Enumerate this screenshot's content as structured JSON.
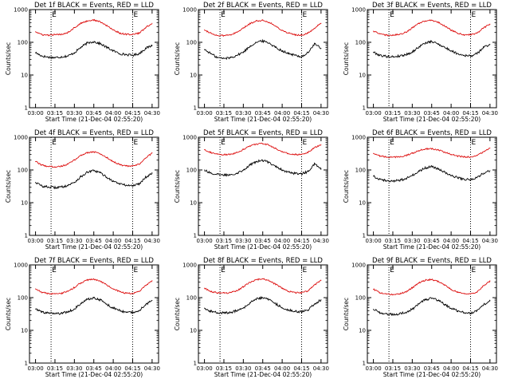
{
  "figure": {
    "colors": {
      "events": "#000000",
      "lld": "#dd1111",
      "marker": "#000000",
      "background": "#ffffff"
    }
  },
  "chart_data": [
    {
      "type": "line",
      "title": "Det 1f BLACK = Events, RED = LLD",
      "xlabel": "Start Time (21-Dec-04 02:55:20)",
      "ylabel": "Counts/sec",
      "x_ticks": [
        "03:00",
        "03:15",
        "03:30",
        "03:45",
        "04:00",
        "04:15",
        "04:30"
      ],
      "y_ticks": [
        "1",
        "10",
        "100",
        "1000"
      ],
      "y_scale": "log",
      "ylim": [
        1,
        1000
      ],
      "xlim": [
        "02:55:20",
        "04:35:00"
      ],
      "markers": [
        {
          "label": "E",
          "x": "03:12"
        },
        {
          "label": "E",
          "x": "04:15"
        }
      ],
      "x": [
        "03:00",
        "03:05",
        "03:10",
        "03:15",
        "03:20",
        "03:25",
        "03:30",
        "03:35",
        "03:40",
        "03:45",
        "03:50",
        "03:55",
        "04:00",
        "04:05",
        "04:10",
        "04:15",
        "04:20",
        "04:25",
        "04:30"
      ],
      "series": [
        {
          "name": "Events",
          "values": [
            48,
            38,
            35,
            34,
            36,
            38,
            48,
            70,
            95,
            105,
            90,
            70,
            55,
            45,
            42,
            40,
            45,
            65,
            80
          ]
        },
        {
          "name": "LLD",
          "values": [
            210,
            170,
            165,
            170,
            175,
            200,
            280,
            380,
            450,
            480,
            420,
            320,
            240,
            190,
            175,
            175,
            190,
            280,
            380
          ]
        }
      ]
    },
    {
      "type": "line",
      "title": "Det 2f BLACK = Events, RED = LLD",
      "xlabel": "Start Time (21-Dec-04 02:55:20)",
      "ylabel": "Counts/sec",
      "x_ticks": [
        "03:00",
        "03:15",
        "03:30",
        "03:45",
        "04:00",
        "04:15",
        "04:30"
      ],
      "y_ticks": [
        "1",
        "10",
        "100",
        "1000"
      ],
      "y_scale": "log",
      "ylim": [
        1,
        1000
      ],
      "xlim": [
        "02:55:20",
        "04:35:00"
      ],
      "markers": [
        {
          "label": "E",
          "x": "03:12"
        },
        {
          "label": "E",
          "x": "04:15"
        }
      ],
      "x": [
        "03:00",
        "03:05",
        "03:10",
        "03:15",
        "03:20",
        "03:25",
        "03:30",
        "03:35",
        "03:40",
        "03:45",
        "03:50",
        "03:55",
        "04:00",
        "04:05",
        "04:10",
        "04:15",
        "04:20",
        "04:25",
        "04:30"
      ],
      "series": [
        {
          "name": "Events",
          "values": [
            60,
            45,
            34,
            32,
            34,
            40,
            50,
            75,
            100,
            110,
            95,
            70,
            55,
            45,
            40,
            36,
            48,
            90,
            65
          ]
        },
        {
          "name": "LLD",
          "values": [
            240,
            190,
            160,
            160,
            170,
            200,
            270,
            370,
            450,
            470,
            410,
            310,
            230,
            190,
            170,
            165,
            190,
            270,
            380
          ]
        }
      ]
    },
    {
      "type": "line",
      "title": "Det 3f BLACK = Events, RED = LLD",
      "xlabel": "Start Time (21-Dec-04 02:55:20)",
      "ylabel": "Counts/sec",
      "x_ticks": [
        "03:00",
        "03:15",
        "03:30",
        "03:45",
        "04:00",
        "04:15",
        "04:30"
      ],
      "y_ticks": [
        "1",
        "10",
        "100",
        "1000"
      ],
      "y_scale": "log",
      "ylim": [
        1,
        1000
      ],
      "xlim": [
        "02:55:20",
        "04:35:00"
      ],
      "markers": [
        {
          "label": "E",
          "x": "03:12"
        },
        {
          "label": "E",
          "x": "04:15"
        }
      ],
      "x": [
        "03:00",
        "03:05",
        "03:10",
        "03:15",
        "03:20",
        "03:25",
        "03:30",
        "03:35",
        "03:40",
        "03:45",
        "03:50",
        "03:55",
        "04:00",
        "04:05",
        "04:10",
        "04:15",
        "04:20",
        "04:25",
        "04:30"
      ],
      "series": [
        {
          "name": "Events",
          "values": [
            50,
            40,
            37,
            36,
            38,
            42,
            50,
            72,
            95,
            105,
            90,
            70,
            55,
            45,
            40,
            38,
            45,
            70,
            85
          ]
        },
        {
          "name": "LLD",
          "values": [
            220,
            180,
            165,
            165,
            175,
            200,
            275,
            375,
            450,
            470,
            410,
            315,
            235,
            190,
            170,
            170,
            190,
            275,
            360
          ]
        }
      ]
    },
    {
      "type": "line",
      "title": "Det 4f BLACK = Events, RED = LLD",
      "xlabel": "Start Time (21-Dec-04 02:55:20)",
      "ylabel": "Counts/sec",
      "x_ticks": [
        "03:00",
        "03:15",
        "03:30",
        "03:45",
        "04:00",
        "04:15",
        "04:30"
      ],
      "y_ticks": [
        "1",
        "10",
        "100",
        "1000"
      ],
      "y_scale": "log",
      "ylim": [
        1,
        1000
      ],
      "xlim": [
        "02:55:20",
        "04:35:00"
      ],
      "markers": [
        {
          "label": "E",
          "x": "03:12"
        },
        {
          "label": "E",
          "x": "04:15"
        }
      ],
      "x": [
        "03:00",
        "03:05",
        "03:10",
        "03:15",
        "03:20",
        "03:25",
        "03:30",
        "03:35",
        "03:40",
        "03:45",
        "03:50",
        "03:55",
        "04:00",
        "04:05",
        "04:10",
        "04:15",
        "04:20",
        "04:25",
        "04:30"
      ],
      "series": [
        {
          "name": "Events",
          "values": [
            42,
            32,
            30,
            29,
            30,
            34,
            42,
            62,
            85,
            95,
            82,
            60,
            45,
            38,
            34,
            33,
            38,
            60,
            80
          ]
        },
        {
          "name": "LLD",
          "values": [
            180,
            140,
            128,
            125,
            130,
            150,
            200,
            280,
            340,
            360,
            310,
            240,
            180,
            145,
            132,
            130,
            150,
            230,
            330
          ]
        }
      ]
    },
    {
      "type": "line",
      "title": "Det 5f BLACK = Events, RED = LLD",
      "xlabel": "Start Time (21-Dec-04 02:55:20)",
      "ylabel": "Counts/sec",
      "x_ticks": [
        "03:00",
        "03:15",
        "03:30",
        "03:45",
        "04:00",
        "04:15",
        "04:30"
      ],
      "y_ticks": [
        "1",
        "10",
        "100",
        "1000"
      ],
      "y_scale": "log",
      "ylim": [
        1,
        1000
      ],
      "xlim": [
        "02:55:20",
        "04:35:00"
      ],
      "markers": [
        {
          "label": "E",
          "x": "03:12"
        },
        {
          "label": "E",
          "x": "04:15"
        }
      ],
      "x": [
        "03:00",
        "03:05",
        "03:10",
        "03:15",
        "03:20",
        "03:25",
        "03:30",
        "03:35",
        "03:40",
        "03:45",
        "03:50",
        "03:55",
        "04:00",
        "04:05",
        "04:10",
        "04:15",
        "04:20",
        "04:25",
        "04:30"
      ],
      "series": [
        {
          "name": "Events",
          "values": [
            100,
            80,
            72,
            70,
            72,
            80,
            100,
            140,
            180,
            195,
            170,
            130,
            100,
            85,
            78,
            76,
            90,
            150,
            110
          ]
        },
        {
          "name": "LLD",
          "values": [
            420,
            340,
            300,
            290,
            300,
            340,
            420,
            540,
            620,
            640,
            570,
            450,
            360,
            310,
            295,
            300,
            350,
            480,
            600
          ]
        }
      ]
    },
    {
      "type": "line",
      "title": "Det 6f BLACK = Events, RED = LLD",
      "xlabel": "Start Time (21-Dec-04 02:55:20)",
      "ylabel": "Counts/sec",
      "x_ticks": [
        "03:00",
        "03:15",
        "03:30",
        "03:45",
        "04:00",
        "04:15",
        "04:30"
      ],
      "y_ticks": [
        "1",
        "10",
        "100",
        "1000"
      ],
      "y_scale": "log",
      "ylim": [
        1,
        1000
      ],
      "xlim": [
        "02:55:20",
        "04:35:00"
      ],
      "markers": [
        {
          "label": "E",
          "x": "03:12"
        },
        {
          "label": "E",
          "x": "04:15"
        }
      ],
      "x": [
        "03:00",
        "03:05",
        "03:10",
        "03:15",
        "03:20",
        "03:25",
        "03:30",
        "03:35",
        "03:40",
        "03:45",
        "03:50",
        "03:55",
        "04:00",
        "04:05",
        "04:10",
        "04:15",
        "04:20",
        "04:25",
        "04:30"
      ],
      "series": [
        {
          "name": "Events",
          "values": [
            65,
            52,
            47,
            46,
            48,
            55,
            68,
            90,
            115,
            125,
            108,
            85,
            68,
            58,
            52,
            50,
            58,
            80,
            95
          ]
        },
        {
          "name": "LLD",
          "values": [
            320,
            270,
            250,
            245,
            250,
            275,
            320,
            390,
            440,
            450,
            410,
            350,
            300,
            265,
            252,
            250,
            275,
            360,
            470
          ]
        }
      ]
    },
    {
      "type": "line",
      "title": "Det 7f BLACK = Events, RED = LLD",
      "xlabel": "Start Time (21-Dec-04 02:55:20)",
      "ylabel": "Counts/sec",
      "x_ticks": [
        "03:00",
        "03:15",
        "03:30",
        "03:45",
        "04:00",
        "04:15",
        "04:30"
      ],
      "y_ticks": [
        "1",
        "10",
        "100",
        "1000"
      ],
      "y_scale": "log",
      "ylim": [
        1,
        1000
      ],
      "xlim": [
        "02:55:20",
        "04:35:00"
      ],
      "markers": [
        {
          "label": "E",
          "x": "03:12"
        },
        {
          "label": "E",
          "x": "04:15"
        }
      ],
      "x": [
        "03:00",
        "03:05",
        "03:10",
        "03:15",
        "03:20",
        "03:25",
        "03:30",
        "03:35",
        "03:40",
        "03:45",
        "03:50",
        "03:55",
        "04:00",
        "04:05",
        "04:10",
        "04:15",
        "04:20",
        "04:25",
        "04:30"
      ],
      "series": [
        {
          "name": "Events",
          "values": [
            45,
            36,
            33,
            32,
            33,
            37,
            45,
            65,
            88,
            98,
            85,
            63,
            48,
            40,
            36,
            35,
            40,
            62,
            82
          ]
        },
        {
          "name": "LLD",
          "values": [
            185,
            145,
            132,
            130,
            135,
            155,
            205,
            285,
            345,
            365,
            315,
            245,
            185,
            150,
            136,
            134,
            155,
            235,
            330
          ]
        }
      ]
    },
    {
      "type": "line",
      "title": "Det 8f BLACK = Events, RED = LLD",
      "xlabel": "Start Time (21-Dec-04 02:55:20)",
      "ylabel": "Counts/sec",
      "x_ticks": [
        "03:00",
        "03:15",
        "03:30",
        "03:45",
        "04:00",
        "04:15",
        "04:30"
      ],
      "y_ticks": [
        "1",
        "10",
        "100",
        "1000"
      ],
      "y_scale": "log",
      "ylim": [
        1,
        1000
      ],
      "xlim": [
        "02:55:20",
        "04:35:00"
      ],
      "markers": [
        {
          "label": "E",
          "x": "03:12"
        },
        {
          "label": "E",
          "x": "04:15"
        }
      ],
      "x": [
        "03:00",
        "03:05",
        "03:10",
        "03:15",
        "03:20",
        "03:25",
        "03:30",
        "03:35",
        "03:40",
        "03:45",
        "03:50",
        "03:55",
        "04:00",
        "04:05",
        "04:10",
        "04:15",
        "04:20",
        "04:25",
        "04:30"
      ],
      "series": [
        {
          "name": "Events",
          "values": [
            48,
            38,
            35,
            34,
            35,
            40,
            48,
            68,
            90,
            100,
            87,
            65,
            50,
            42,
            38,
            37,
            42,
            65,
            85
          ]
        },
        {
          "name": "LLD",
          "values": [
            195,
            155,
            140,
            138,
            142,
            162,
            215,
            295,
            355,
            375,
            325,
            255,
            192,
            156,
            142,
            140,
            160,
            245,
            340
          ]
        }
      ]
    },
    {
      "type": "line",
      "title": "Det 9f BLACK = Events, RED = LLD",
      "xlabel": "Start Time (21-Dec-04 02:55:20)",
      "ylabel": "Counts/sec",
      "x_ticks": [
        "03:00",
        "03:15",
        "03:30",
        "03:45",
        "04:00",
        "04:15",
        "04:30"
      ],
      "y_ticks": [
        "1",
        "10",
        "100",
        "1000"
      ],
      "y_scale": "log",
      "ylim": [
        1,
        1000
      ],
      "xlim": [
        "02:55:20",
        "04:35:00"
      ],
      "markers": [
        {
          "label": "E",
          "x": "03:12"
        },
        {
          "label": "E",
          "x": "04:15"
        }
      ],
      "x": [
        "03:00",
        "03:05",
        "03:10",
        "03:15",
        "03:20",
        "03:25",
        "03:30",
        "03:35",
        "03:40",
        "03:45",
        "03:50",
        "03:55",
        "04:00",
        "04:05",
        "04:10",
        "04:15",
        "04:20",
        "04:25",
        "04:30"
      ],
      "series": [
        {
          "name": "Events",
          "values": [
            44,
            35,
            32,
            31,
            32,
            36,
            44,
            64,
            86,
            96,
            83,
            62,
            47,
            39,
            35,
            34,
            39,
            60,
            80
          ]
        },
        {
          "name": "LLD",
          "values": [
            180,
            142,
            128,
            126,
            130,
            150,
            200,
            280,
            340,
            360,
            310,
            240,
            180,
            146,
            132,
            130,
            150,
            230,
            320
          ]
        }
      ]
    }
  ]
}
